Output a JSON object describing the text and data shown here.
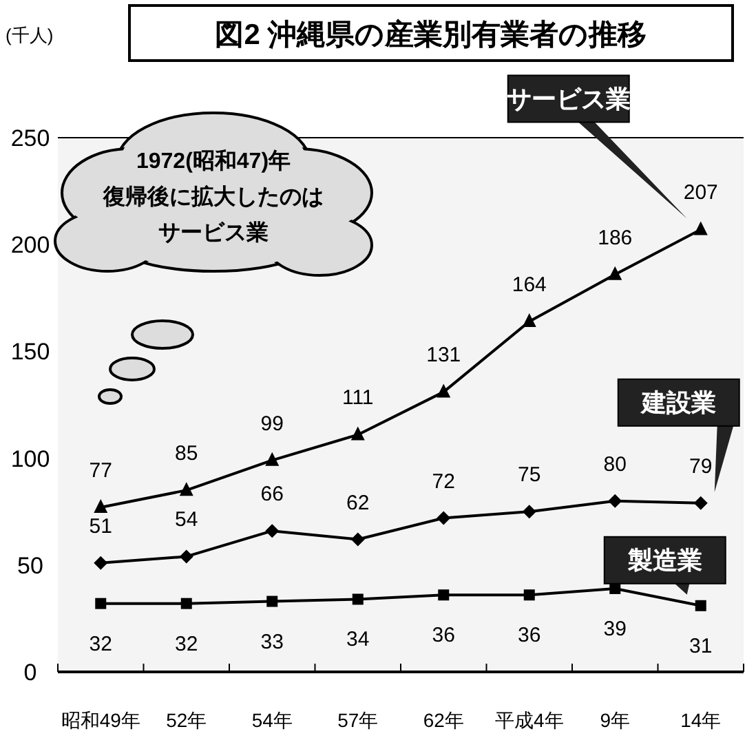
{
  "chart_data": {
    "type": "line",
    "title": "図2 沖縄県の産業別有業者の推移",
    "annotations": [
      "(千人)",
      "1972(昭和47)年",
      "復帰後に拡大したのは",
      "サービス業"
    ],
    "categories": [
      "昭和49年",
      "52年",
      "54年",
      "57年",
      "62年",
      "平成4年",
      "9年",
      "14年"
    ],
    "series": [
      {
        "name": "サービス業",
        "color": "#000000",
        "marker": "triangle",
        "values": [
          77,
          85,
          99,
          111,
          131,
          164,
          186,
          207
        ]
      },
      {
        "name": "建設業",
        "color": "#000000",
        "marker": "diamond",
        "values": [
          51,
          54,
          66,
          62,
          72,
          75,
          80,
          79
        ]
      },
      {
        "name": "製造業",
        "color": "#000000",
        "marker": "square",
        "values": [
          32,
          32,
          33,
          34,
          36,
          36,
          39,
          31
        ]
      }
    ],
    "ylim": [
      0,
      250
    ],
    "yticks": [
      0,
      50,
      100,
      150,
      200,
      250
    ],
    "data_labels": true,
    "grid": false,
    "legend": false
  }
}
